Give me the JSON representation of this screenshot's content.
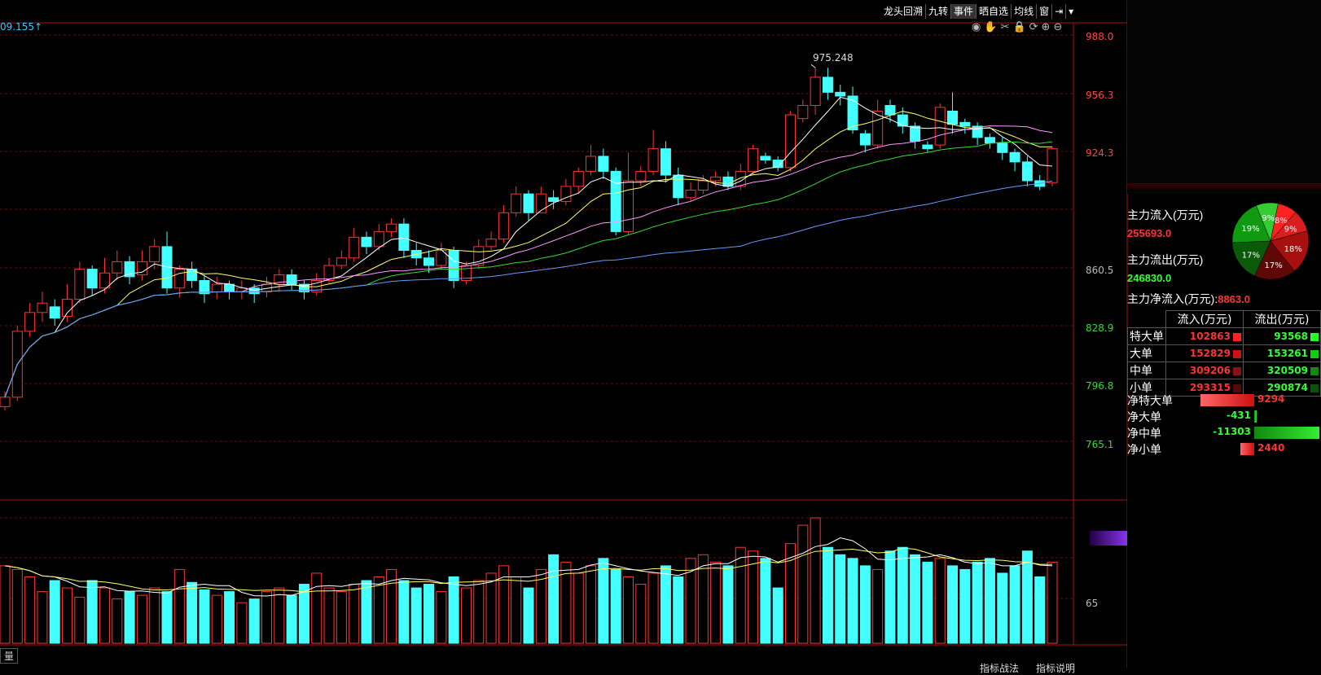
{
  "toolbar": {
    "items": [
      "龙头回溯",
      "九转",
      "事件",
      "晒自选",
      "均线",
      "窗"
    ],
    "top_left_value": "09.155↑"
  },
  "price_axis": {
    "labels": [
      "988.0",
      "956.3",
      "924.3",
      "860.5",
      "828.9",
      "796.8",
      "765.1"
    ],
    "peak_label": "975.248"
  },
  "volume_axis": {
    "label": "65"
  },
  "bottom": {
    "volume_tab": "量",
    "tabs": [
      "指标战法",
      "指标说明"
    ]
  },
  "main_force": {
    "inflow_label": "主力流入(万元)",
    "inflow_value": "255693.0",
    "outflow_label": "主力流出(万元)",
    "outflow_value": "246830.0",
    "net_label": "主力净流入(万元):",
    "net_value": "8863.0"
  },
  "pie": {
    "slices": [
      {
        "label": "8%",
        "value": 8,
        "color": "#ff2222"
      },
      {
        "label": "9%",
        "value": 9,
        "color": "#d81e1e"
      },
      {
        "label": "18%",
        "value": 18,
        "color": "#a81010"
      },
      {
        "label": "17%",
        "value": 17,
        "color": "#600808"
      },
      {
        "label": "17%",
        "value": 17,
        "color": "#0a5a0a"
      },
      {
        "label": "19%",
        "value": 19,
        "color": "#119911"
      },
      {
        "label": "9%",
        "value": 9,
        "color": "#33cc33"
      }
    ]
  },
  "flow_table": {
    "headers": [
      "流入(万元)",
      "流出(万元)"
    ],
    "rows": [
      {
        "name": "特大单",
        "in": "102863",
        "out": "93568"
      },
      {
        "name": "大单",
        "in": "152829",
        "out": "153261"
      },
      {
        "name": "中单",
        "in": "309206",
        "out": "320509"
      },
      {
        "name": "小单",
        "in": "293315",
        "out": "290874"
      }
    ]
  },
  "net_table": {
    "rows": [
      {
        "name": "净特大单",
        "value": "9294",
        "amount": 9294
      },
      {
        "name": "净大单",
        "value": "-431",
        "amount": -431
      },
      {
        "name": "净中单",
        "value": "-11303",
        "amount": -11303
      },
      {
        "name": "净小单",
        "value": "2440",
        "amount": 2440
      }
    ]
  },
  "chart_data": {
    "type": "candlestick",
    "price_range": [
      748,
      992
    ],
    "candles": [
      [
        795,
        800,
        803,
        793
      ],
      [
        800,
        835,
        838,
        798
      ],
      [
        835,
        845,
        850,
        832
      ],
      [
        845,
        850,
        856,
        840
      ],
      [
        848,
        842,
        852,
        838
      ],
      [
        843,
        852,
        860,
        840
      ],
      [
        852,
        868,
        872,
        850
      ],
      [
        868,
        858,
        870,
        854
      ],
      [
        858,
        866,
        874,
        855
      ],
      [
        866,
        872,
        878,
        862
      ],
      [
        872,
        864,
        875,
        860
      ],
      [
        865,
        872,
        878,
        862
      ],
      [
        872,
        880,
        884,
        868
      ],
      [
        880,
        858,
        888,
        855
      ],
      [
        858,
        868,
        870,
        853
      ],
      [
        868,
        862,
        872,
        858
      ],
      [
        862,
        855,
        865,
        850
      ],
      [
        856,
        860,
        864,
        852
      ],
      [
        860,
        856,
        862,
        852
      ],
      [
        856,
        858,
        862,
        852
      ],
      [
        858,
        855,
        860,
        850
      ],
      [
        856,
        860,
        864,
        853
      ],
      [
        860,
        865,
        868,
        856
      ],
      [
        865,
        860,
        868,
        857
      ],
      [
        860,
        856,
        862,
        852
      ],
      [
        856,
        862,
        866,
        854
      ],
      [
        862,
        870,
        874,
        860
      ],
      [
        870,
        874,
        878,
        868
      ],
      [
        874,
        885,
        890,
        872
      ],
      [
        885,
        880,
        888,
        876
      ],
      [
        880,
        888,
        892,
        878
      ],
      [
        888,
        892,
        895,
        885
      ],
      [
        892,
        878,
        895,
        874
      ],
      [
        878,
        874,
        882,
        870
      ],
      [
        874,
        870,
        878,
        866
      ],
      [
        870,
        878,
        882,
        868
      ],
      [
        878,
        862,
        880,
        858
      ],
      [
        862,
        870,
        872,
        860
      ],
      [
        870,
        880,
        884,
        868
      ],
      [
        880,
        884,
        888,
        878
      ],
      [
        884,
        898,
        902,
        882
      ],
      [
        898,
        908,
        912,
        896
      ],
      [
        908,
        898,
        910,
        894
      ],
      [
        898,
        908,
        912,
        904
      ],
      [
        906,
        904,
        910,
        900
      ],
      [
        904,
        912,
        916,
        902
      ],
      [
        912,
        920,
        922,
        908
      ],
      [
        920,
        928,
        934,
        918
      ],
      [
        928,
        920,
        932,
        916
      ],
      [
        920,
        888,
        922,
        886
      ],
      [
        888,
        915,
        930,
        886
      ],
      [
        915,
        920,
        923,
        912
      ],
      [
        920,
        932,
        942,
        918
      ],
      [
        932,
        918,
        936,
        914
      ],
      [
        918,
        906,
        922,
        902
      ],
      [
        906,
        910,
        914,
        904
      ],
      [
        910,
        915,
        918,
        908
      ],
      [
        915,
        917,
        920,
        912
      ],
      [
        917,
        912,
        920,
        910
      ],
      [
        912,
        920,
        924,
        910
      ],
      [
        920,
        932,
        934,
        918
      ],
      [
        928,
        926,
        930,
        924
      ],
      [
        926,
        922,
        928,
        920
      ],
      [
        922,
        950,
        952,
        920
      ],
      [
        948,
        955,
        958,
        946
      ],
      [
        955,
        970,
        975,
        950
      ],
      [
        970,
        962,
        975,
        958
      ],
      [
        962,
        960,
        966,
        955
      ],
      [
        960,
        942,
        965,
        940
      ],
      [
        940,
        934,
        942,
        930
      ],
      [
        934,
        952,
        958,
        932
      ],
      [
        955,
        950,
        958,
        946
      ],
      [
        950,
        944,
        954,
        940
      ],
      [
        944,
        936,
        946,
        932
      ],
      [
        934,
        932,
        936,
        930
      ],
      [
        934,
        954,
        956,
        932
      ],
      [
        952,
        945,
        962,
        940
      ],
      [
        946,
        944,
        948,
        940
      ],
      [
        944,
        938,
        946,
        934
      ],
      [
        938,
        935,
        940,
        932
      ],
      [
        935,
        930,
        938,
        926
      ],
      [
        930,
        925,
        932,
        920
      ],
      [
        925,
        915,
        928,
        912
      ],
      [
        915,
        912,
        918,
        910
      ],
      [
        914,
        932,
        933,
        912
      ]
    ],
    "volume": [
      42,
      40,
      36,
      28,
      34,
      30,
      25,
      34,
      30,
      24,
      28,
      26,
      30,
      28,
      40,
      33,
      29,
      26,
      28,
      22,
      24,
      28,
      30,
      26,
      32,
      38,
      30,
      28,
      32,
      34,
      36,
      40,
      34,
      30,
      32,
      28,
      36,
      30,
      34,
      38,
      42,
      36,
      30,
      40,
      48,
      44,
      38,
      42,
      46,
      40,
      36,
      32,
      38,
      42,
      36,
      46,
      48,
      44,
      42,
      52,
      50,
      46,
      30,
      54,
      64,
      68,
      52,
      48,
      46,
      42,
      40,
      50,
      52,
      48,
      44,
      46,
      42,
      40,
      44,
      46,
      38,
      42,
      50,
      36,
      44
    ]
  }
}
